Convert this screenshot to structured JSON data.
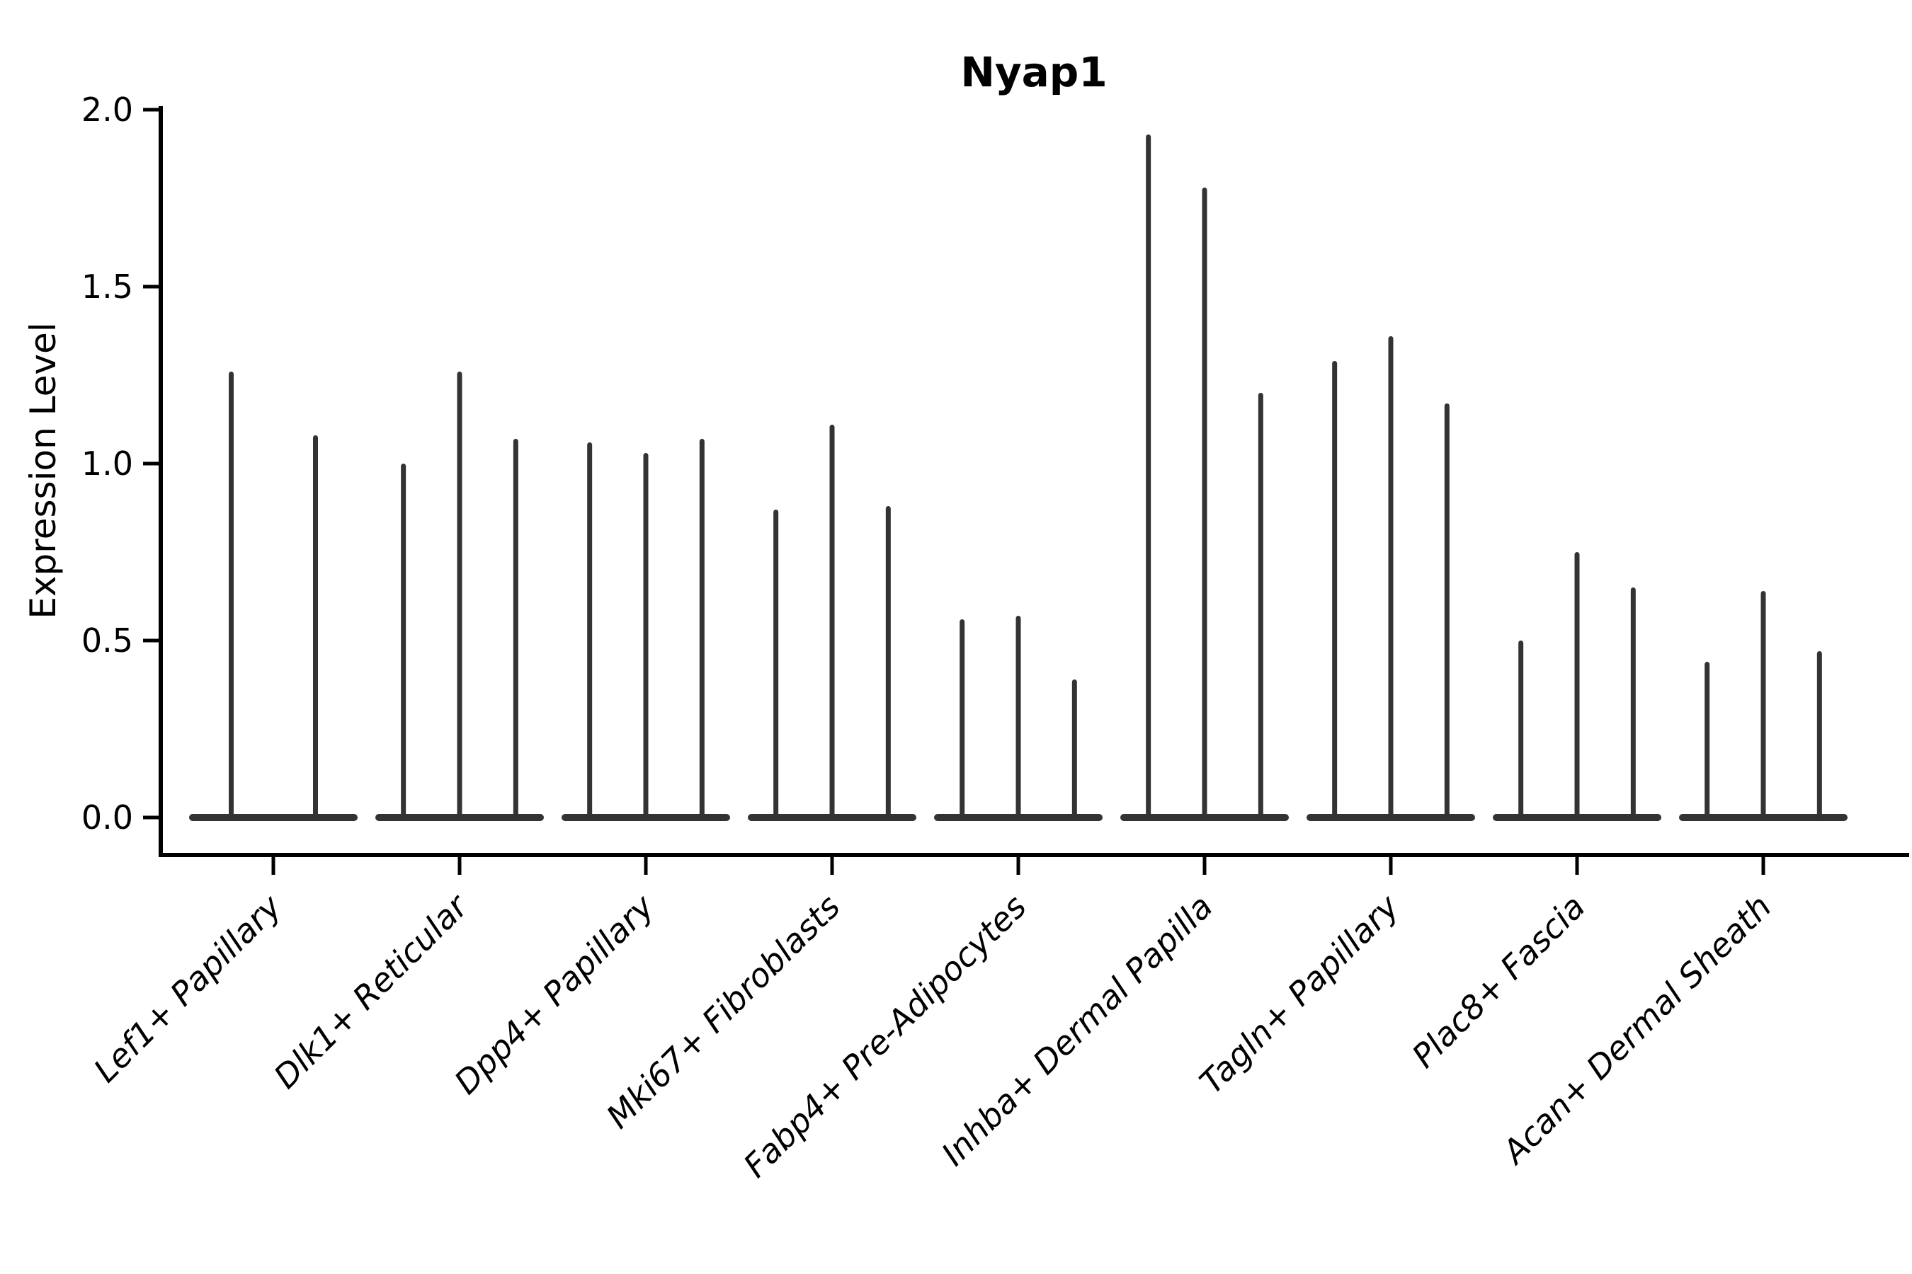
{
  "chart_data": {
    "type": "violin",
    "title": "Nyap1",
    "ylabel": "Expression Level",
    "xlabel": "",
    "ylim": [
      -0.11,
      2.01
    ],
    "yticks": [
      0.0,
      0.5,
      1.0,
      1.5,
      2.0
    ],
    "ytick_labels": [
      "0.0",
      "0.5",
      "1.0",
      "1.5",
      "2.0"
    ],
    "grid": false,
    "legend": "none",
    "violin_style": "collapsed-at-zero with thin spikes up to max expression",
    "categories": [
      "Lef1+ Papillary",
      "Dlk1+ Reticular",
      "Dpp4+ Papillary",
      "Mki67+ Fibroblasts",
      "Fabp4+ Pre-Adipocytes",
      "Inhba+ Dermal Papilla",
      "Tagln+ Papillary",
      "Plac8+ Fascia",
      "Acan+ Dermal Sheath"
    ],
    "series": [
      {
        "category": "Lef1+ Papillary",
        "spike_max_values": [
          1.26,
          1.08
        ]
      },
      {
        "category": "Dlk1+ Reticular",
        "spike_max_values": [
          1.0,
          1.26,
          1.07
        ]
      },
      {
        "category": "Dpp4+ Papillary",
        "spike_max_values": [
          1.06,
          1.03,
          1.07
        ]
      },
      {
        "category": "Mki67+ Fibroblasts",
        "spike_max_values": [
          0.87,
          1.11,
          0.88
        ]
      },
      {
        "category": "Fabp4+ Pre-Adipocytes",
        "spike_max_values": [
          0.56,
          0.57,
          0.39
        ]
      },
      {
        "category": "Inhba+ Dermal Papilla",
        "spike_max_values": [
          1.93,
          1.78,
          1.2
        ]
      },
      {
        "category": "Tagln+ Papillary",
        "spike_max_values": [
          1.29,
          1.36,
          1.17
        ]
      },
      {
        "category": "Plac8+ Fascia",
        "spike_max_values": [
          0.5,
          0.75,
          0.65
        ]
      },
      {
        "category": "Acan+ Dermal Sheath",
        "spike_max_values": [
          0.44,
          0.64,
          0.47
        ]
      }
    ]
  },
  "colors": {
    "violin": "#333333",
    "axis": "#000000",
    "text": "#000000",
    "background": "#ffffff"
  }
}
